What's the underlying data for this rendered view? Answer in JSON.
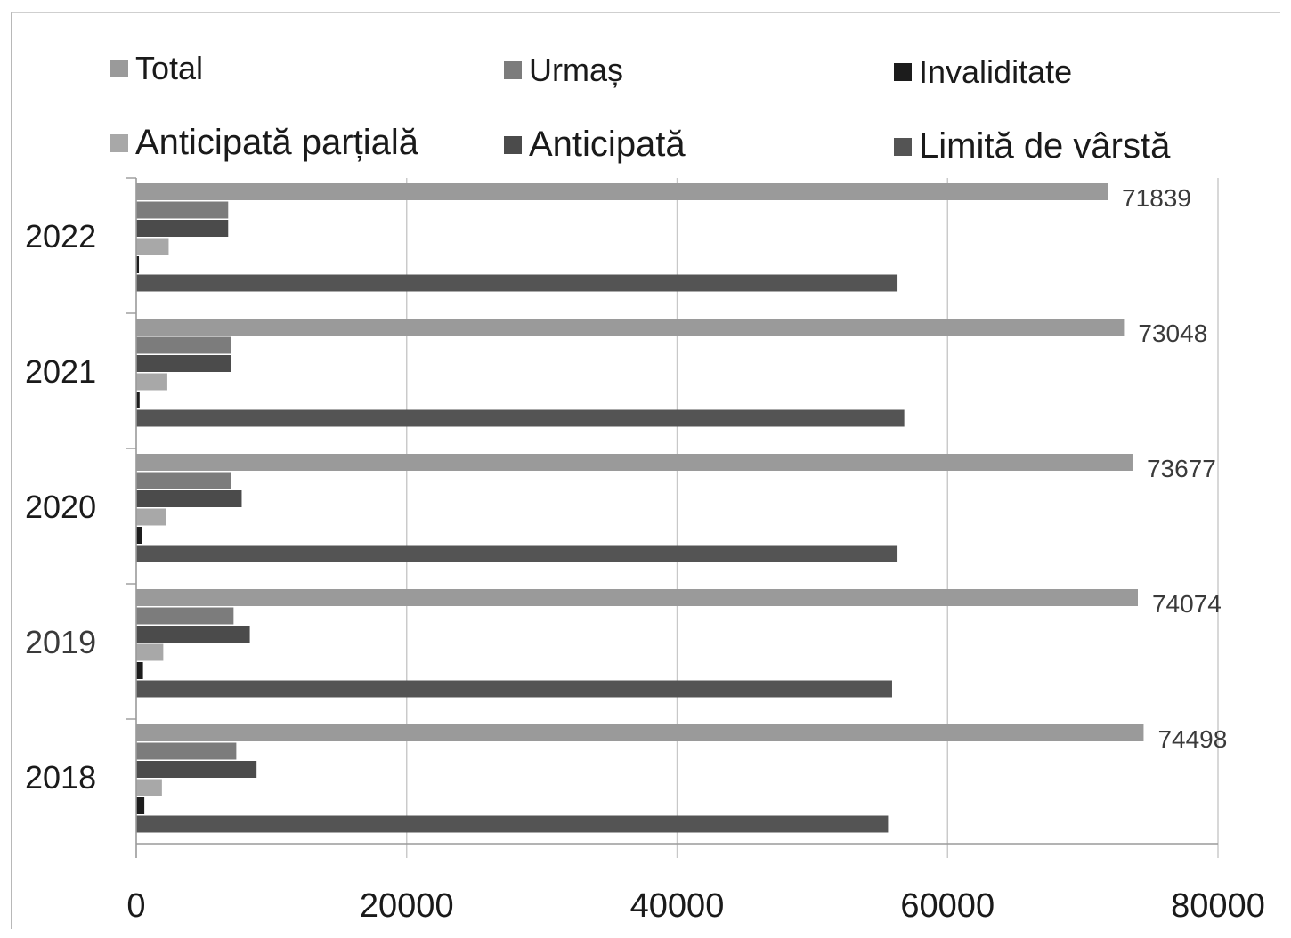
{
  "chart_data": {
    "type": "bar",
    "orientation": "horizontal",
    "categories": [
      "2022",
      "2021",
      "2020",
      "2019",
      "2018"
    ],
    "series": [
      {
        "name": "Total",
        "color": "#9a9a9a",
        "values": [
          71839,
          73048,
          73677,
          74074,
          74498
        ]
      },
      {
        "name": "Urmaș",
        "color": "#7c7c7c",
        "values": [
          6800,
          7000,
          7000,
          7200,
          7400
        ]
      },
      {
        "name": "Anticipată",
        "color": "#4b4b4b",
        "values": [
          6800,
          7000,
          7800,
          8400,
          8900
        ]
      },
      {
        "name": "Anticipată parțială",
        "color": "#a8a8a8",
        "values": [
          2400,
          2300,
          2200,
          2000,
          1900
        ]
      },
      {
        "name": "Invaliditate",
        "color": "#1c1c1c",
        "values": [
          200,
          250,
          400,
          500,
          600
        ]
      },
      {
        "name": "Limită de vârstă",
        "color": "#545454",
        "values": [
          56300,
          56800,
          56300,
          55900,
          55600
        ]
      }
    ],
    "data_labels": [
      "71839",
      "73048",
      "73677",
      "74074",
      "74498"
    ],
    "xlim": [
      0,
      80000
    ],
    "x_ticks": [
      "0",
      "20000",
      "40000",
      "60000",
      "80000"
    ],
    "grid": true,
    "legend_position": "top",
    "legend_order": [
      "Total",
      "Urmaș",
      "Invaliditate",
      "Anticipată parțială",
      "Anticipată",
      "Limită de vârstă"
    ]
  }
}
